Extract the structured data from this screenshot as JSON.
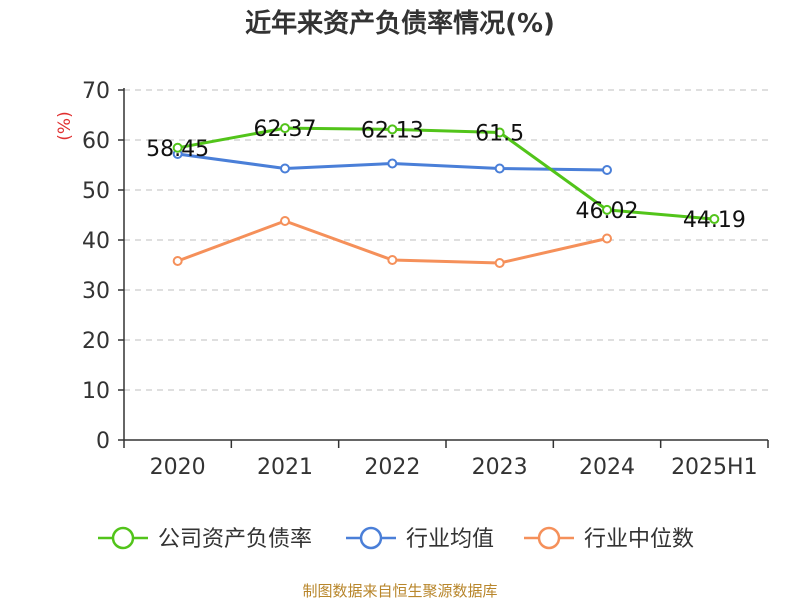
{
  "chart_data": {
    "type": "line",
    "title": "近年来资产负债率情况(%)",
    "ylabel": "(%)",
    "categories": [
      "2020",
      "2021",
      "2022",
      "2023",
      "2024",
      "2025H1"
    ],
    "ylim": [
      0,
      70
    ],
    "yticks": [
      0,
      10,
      20,
      30,
      40,
      50,
      60,
      70
    ],
    "grid": "horizontal-dashed",
    "legend_position": "bottom",
    "series": [
      {
        "name": "公司资产负债率",
        "color": "#52c41a",
        "values": [
          58.45,
          62.37,
          62.13,
          61.5,
          46.02,
          44.19
        ],
        "labels": [
          "58.45",
          "62.37",
          "62.13",
          "61.5",
          "46.02",
          "44.19"
        ]
      },
      {
        "name": "行业均值",
        "color": "#4a7fd8",
        "values": [
          57.2,
          54.3,
          55.3,
          54.3,
          54.0,
          null
        ]
      },
      {
        "name": "行业中位数",
        "color": "#f5905a",
        "values": [
          35.8,
          43.8,
          36.0,
          35.4,
          40.3,
          null
        ]
      }
    ]
  },
  "source": "制图数据来自恒生聚源数据库",
  "colors": {
    "source": "#b8862b",
    "ylabel": "#e03030",
    "axis": "#333333",
    "grid": "#cccccc"
  }
}
